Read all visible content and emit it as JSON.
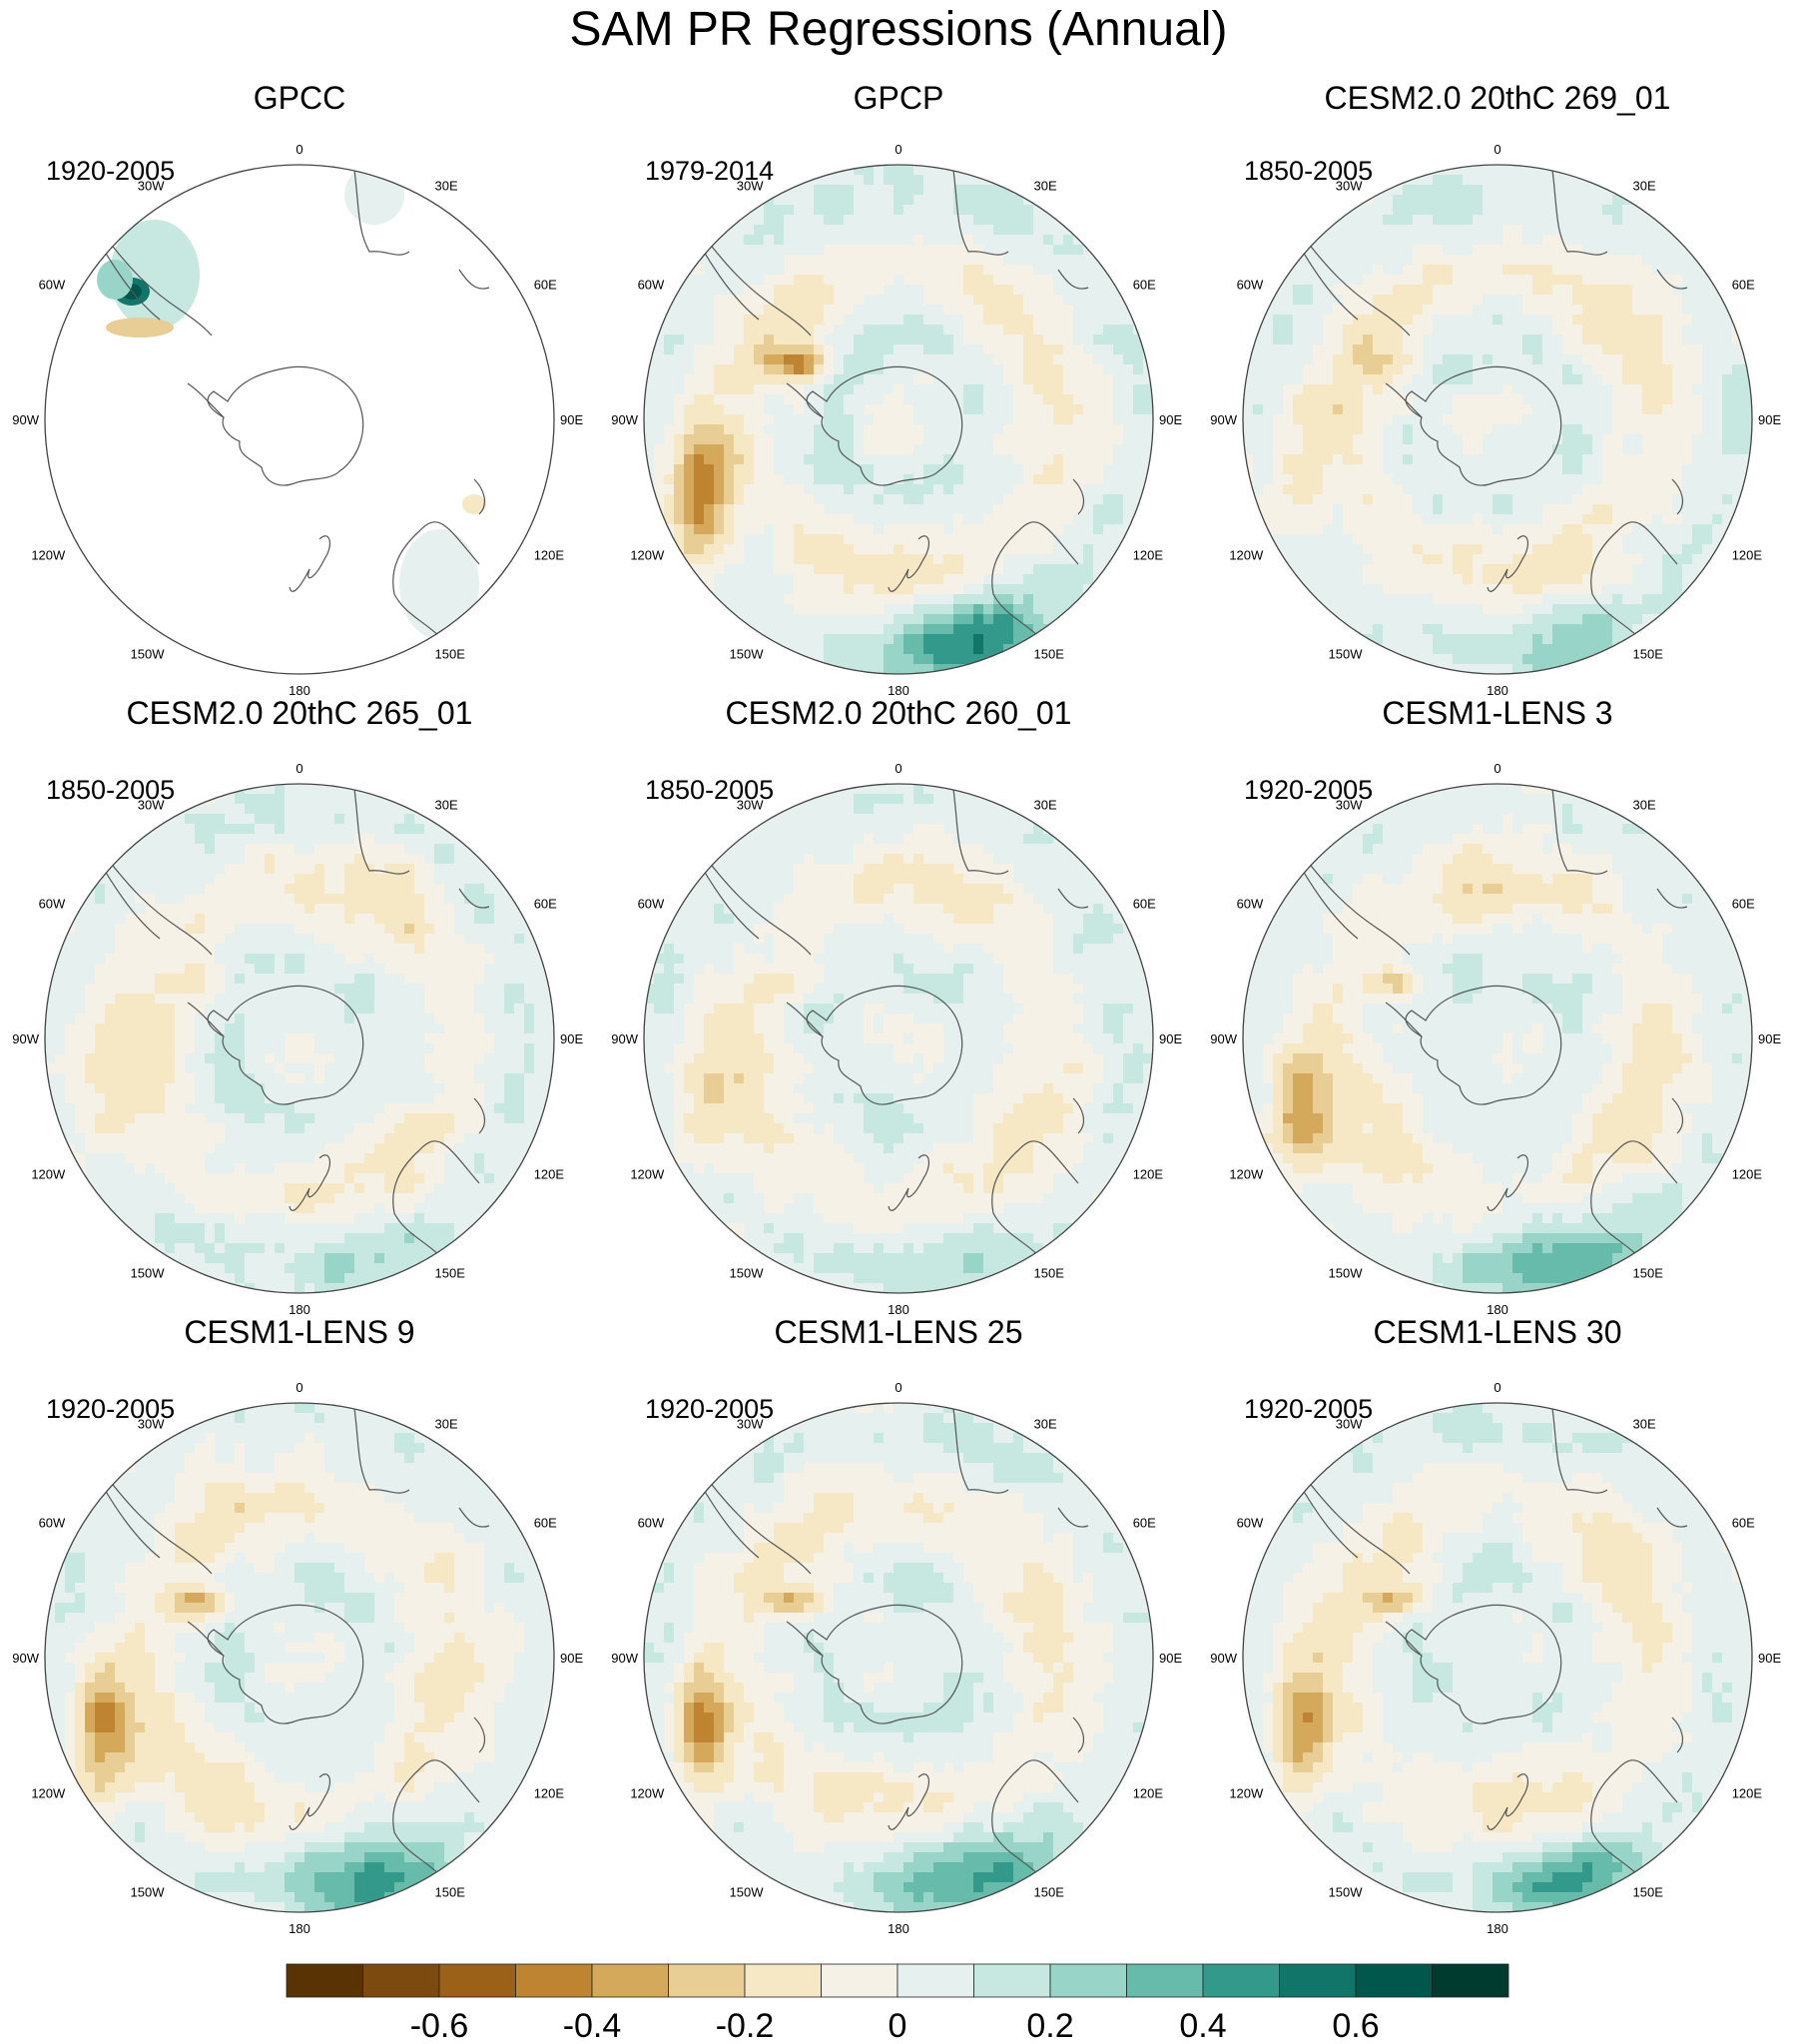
{
  "title": "SAM PR Regressions (Annual)",
  "colors": {
    "levels": [
      "#5a3305",
      "#7c4a0e",
      "#9c6118",
      "#bf8431",
      "#d4a95c",
      "#e8ce94",
      "#f6e8c5",
      "#f5f1e6",
      "#e6f0ee",
      "#c6e8e0",
      "#98d5c8",
      "#66bbaa",
      "#33998a",
      "#117569",
      "#01574b",
      "#003b30"
    ],
    "coast": "#555555",
    "ring": "#444444"
  },
  "lon_labels": [
    "0",
    "30E",
    "60E",
    "90E",
    "120E",
    "150E",
    "180",
    "150W",
    "120W",
    "90W",
    "60W",
    "30W"
  ],
  "panels": [
    {
      "id": "gpcc",
      "title": "GPCC",
      "years": "1920-2005",
      "coverage": "land"
    },
    {
      "id": "gpcp",
      "title": "GPCP",
      "years": "1979-2014",
      "coverage": "full"
    },
    {
      "id": "cesm2-269",
      "title": "CESM2.0 20thC 269_01",
      "years": "1850-2005",
      "coverage": "full"
    },
    {
      "id": "cesm2-265",
      "title": "CESM2.0 20thC 265_01",
      "years": "1850-2005",
      "coverage": "full"
    },
    {
      "id": "cesm2-260",
      "title": "CESM2.0 20thC 260_01",
      "years": "1850-2005",
      "coverage": "full"
    },
    {
      "id": "lens3",
      "title": "CESM1-LENS 3",
      "years": "1920-2005",
      "coverage": "full"
    },
    {
      "id": "lens9",
      "title": "CESM1-LENS 9",
      "years": "1920-2005",
      "coverage": "full"
    },
    {
      "id": "lens25",
      "title": "CESM1-LENS 25",
      "years": "1920-2005",
      "coverage": "full"
    },
    {
      "id": "lens30",
      "title": "CESM1-LENS 30",
      "years": "1920-2005",
      "coverage": "full"
    }
  ],
  "colorbar": {
    "tick_labels": [
      "-0.6",
      "-0.4",
      "-0.2",
      "0",
      "0.2",
      "0.4",
      "0.6"
    ],
    "tick_values": [
      -0.6,
      -0.4,
      -0.2,
      0,
      0.2,
      0.4,
      0.6
    ]
  },
  "chart_data": {
    "type": "heatmap",
    "projection": "south-polar-stereographic",
    "title": "SAM PR Regressions (Annual)",
    "variable": "PR",
    "contour_levels": [
      -0.7,
      -0.6,
      -0.5,
      -0.4,
      -0.3,
      -0.2,
      -0.1,
      0,
      0.1,
      0.2,
      0.3,
      0.4,
      0.5,
      0.6,
      0.7
    ],
    "colorbar_ticks": [
      -0.6,
      -0.4,
      -0.2,
      0,
      0.2,
      0.4,
      0.6
    ],
    "longitude_ticks": [
      "0",
      "30E",
      "60E",
      "90E",
      "120E",
      "150E",
      "180",
      "150W",
      "120W",
      "90W",
      "60W",
      "30W"
    ],
    "panels": [
      {
        "title": "GPCC",
        "period": "1920-2005",
        "coverage": "land only"
      },
      {
        "title": "GPCP",
        "period": "1979-2014",
        "coverage": "global"
      },
      {
        "title": "CESM2.0 20thC 269_01",
        "period": "1850-2005",
        "coverage": "global"
      },
      {
        "title": "CESM2.0 20thC 265_01",
        "period": "1850-2005",
        "coverage": "global"
      },
      {
        "title": "CESM2.0 20thC 260_01",
        "period": "1850-2005",
        "coverage": "global"
      },
      {
        "title": "CESM1-LENS 3",
        "period": "1920-2005",
        "coverage": "global"
      },
      {
        "title": "CESM1-LENS 9",
        "period": "1920-2005",
        "coverage": "global"
      },
      {
        "title": "CESM1-LENS 25",
        "period": "1920-2005",
        "coverage": "global"
      },
      {
        "title": "CESM1-LENS 30",
        "period": "1920-2005",
        "coverage": "global"
      }
    ]
  }
}
